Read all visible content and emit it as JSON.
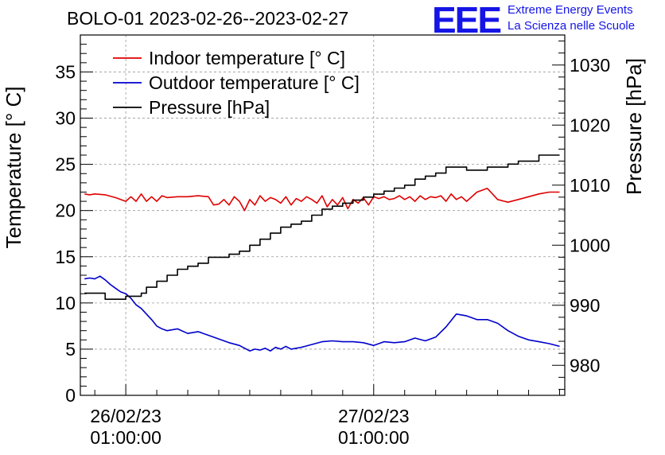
{
  "header": {
    "title": "BOLO-01 2023-02-26--2023-02-27",
    "logo": "EEE",
    "org_line1": "Extreme Energy Events",
    "org_line2": "La Scienza nelle Scuole"
  },
  "colors": {
    "indoor": "#e00000",
    "outdoor": "#0000cc",
    "pressure": "#000000",
    "grid": "#999999"
  },
  "chart_data": {
    "type": "line",
    "title": "BOLO-01 2023-02-26--2023-02-27",
    "xlabel": "",
    "ylabel": "Temperature [° C]",
    "y2label": "Pressure [hPa]",
    "x_unit": "hours",
    "xlim": [
      -4.4,
      42.5
    ],
    "ylim": [
      0,
      39
    ],
    "y2lim": [
      975,
      1035
    ],
    "grid": true,
    "legend_position": "top-left",
    "x_tick_labels": [
      {
        "x": 0,
        "line1": "26/02/23",
        "line2": "01:00:00"
      },
      {
        "x": 24,
        "line1": "27/02/23",
        "line2": "01:00:00"
      }
    ],
    "y_ticks": [
      0,
      5,
      10,
      15,
      20,
      25,
      30,
      35
    ],
    "y2_ticks": [
      980,
      990,
      1000,
      1010,
      1020,
      1030
    ],
    "series": [
      {
        "name": "Indoor temperature [° C]",
        "axis": "left",
        "x": [
          -4,
          -3.5,
          -3,
          -2,
          -1,
          0,
          0.5,
          1,
          1.5,
          2,
          2.5,
          3,
          3.5,
          4,
          5,
          6,
          7,
          8,
          8.5,
          9,
          9.5,
          10,
          10.5,
          11,
          11.5,
          12,
          12.5,
          13,
          13.5,
          14,
          14.5,
          15,
          15.5,
          16,
          16.5,
          17,
          17.5,
          18,
          18.5,
          19,
          19.5,
          20,
          20.5,
          21,
          21.5,
          22,
          22.5,
          23,
          23.5,
          24,
          24.5,
          25,
          25.5,
          26,
          26.5,
          27,
          27.5,
          28,
          28.5,
          29,
          29.5,
          30,
          30.5,
          31,
          31.5,
          32,
          32.5,
          33,
          34,
          35,
          36,
          37,
          38,
          39,
          40,
          41,
          42
        ],
        "values": [
          21.8,
          21.7,
          21.8,
          21.7,
          21.4,
          21.0,
          21.5,
          21.0,
          21.8,
          21.0,
          21.5,
          21.0,
          21.6,
          21.4,
          21.5,
          21.5,
          21.6,
          21.5,
          20.6,
          20.7,
          21.2,
          20.6,
          21.5,
          21.0,
          20.0,
          21.2,
          20.6,
          21.6,
          21.0,
          21.4,
          21.2,
          20.8,
          21.5,
          20.6,
          21.3,
          21.0,
          21.5,
          21.2,
          20.8,
          21.6,
          20.4,
          21.2,
          20.6,
          21.4,
          20.2,
          21.2,
          20.8,
          21.4,
          20.6,
          21.5,
          21.3,
          21.5,
          21.2,
          21.3,
          21.6,
          21.2,
          21.5,
          21.0,
          21.6,
          21.2,
          21.5,
          21.4,
          21.6,
          21.0,
          21.8,
          21.2,
          21.5,
          21.0,
          22.0,
          22.4,
          21.2,
          20.9,
          21.2,
          21.5,
          21.8,
          22.0,
          22.0
        ]
      },
      {
        "name": "Outdoor temperature [° C]",
        "axis": "left",
        "x": [
          -4,
          -3.5,
          -3,
          -2.5,
          -2,
          -1.5,
          -1,
          -0.5,
          0,
          0.5,
          1,
          1.5,
          2,
          2.5,
          3,
          3.5,
          4,
          5,
          6,
          7,
          8,
          9,
          10,
          11,
          12,
          12.5,
          13,
          13.5,
          14,
          14.5,
          15,
          15.5,
          16,
          16.5,
          17,
          18,
          19,
          20,
          21,
          22,
          23,
          24,
          25,
          26,
          27,
          28,
          29,
          30,
          31,
          32,
          33,
          34,
          35,
          36,
          37,
          38,
          39,
          40,
          41,
          42
        ],
        "values": [
          12.6,
          12.7,
          12.6,
          12.9,
          12.5,
          12.0,
          11.6,
          11.2,
          11.0,
          10.5,
          9.8,
          9.4,
          8.8,
          8.2,
          7.5,
          7.2,
          7.0,
          7.2,
          6.7,
          6.9,
          6.5,
          6.1,
          5.7,
          5.4,
          4.8,
          5.0,
          4.9,
          5.1,
          4.8,
          5.2,
          5.0,
          5.3,
          5.0,
          5.1,
          5.2,
          5.5,
          5.8,
          5.9,
          5.8,
          5.8,
          5.7,
          5.4,
          5.8,
          5.7,
          5.8,
          6.2,
          5.9,
          6.3,
          7.4,
          8.8,
          8.6,
          8.2,
          8.2,
          7.8,
          7.0,
          6.4,
          6.0,
          5.8,
          5.6,
          5.3
        ]
      },
      {
        "name": "Pressure [hPa]",
        "axis": "right",
        "step": true,
        "x": [
          -4,
          -2,
          0,
          1.5,
          2,
          3,
          4,
          5,
          6,
          7,
          8,
          10,
          11,
          12,
          13,
          14,
          15,
          16,
          17,
          18,
          19,
          20,
          21,
          22,
          23,
          24,
          25,
          26,
          27,
          28,
          29,
          30,
          31,
          33,
          34,
          35,
          36,
          37,
          38,
          40,
          42
        ],
        "values": [
          992,
          991,
          991.5,
          992,
          993,
          994,
          995,
          996,
          996.5,
          997,
          998,
          998.5,
          999,
          1000,
          1001,
          1002,
          1003,
          1003.5,
          1004,
          1005,
          1006,
          1006.5,
          1007,
          1007.5,
          1008,
          1008.5,
          1009,
          1009.5,
          1010,
          1011,
          1011.5,
          1012,
          1013,
          1012.5,
          1012.5,
          1013,
          1013,
          1013.5,
          1014,
          1015,
          1015
        ]
      }
    ]
  }
}
